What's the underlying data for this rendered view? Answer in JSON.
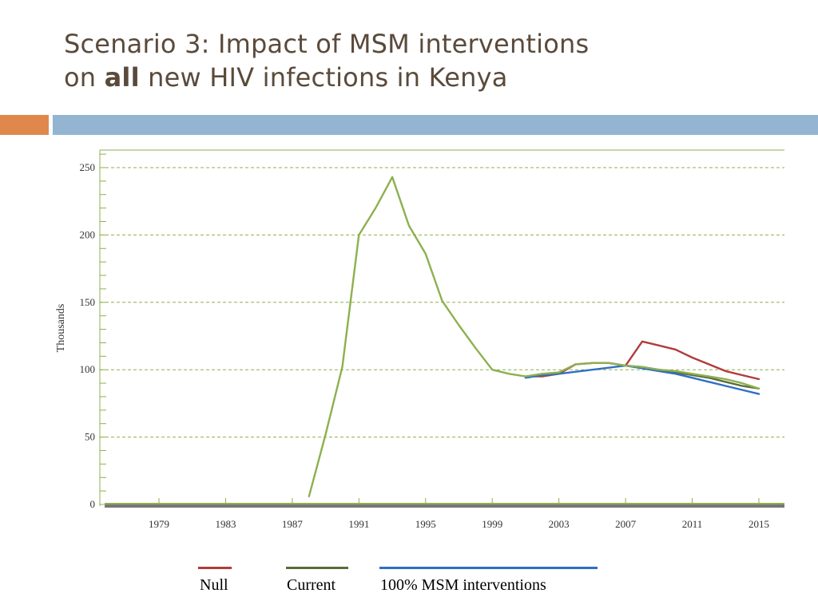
{
  "slide": {
    "title_line1": "Scenario 3: Impact of MSM interventions",
    "title_line2_pre": "on ",
    "title_line2_bold": "all",
    "title_line2_post": " new HIV infections in Kenya",
    "colors": {
      "title": "#5a4a3b",
      "accent_orange": "#e0884c",
      "accent_blue": "#93b5d1"
    }
  },
  "chart_data": {
    "type": "line",
    "title": "",
    "xlabel": "",
    "ylabel": "Thousands",
    "xlim": [
      1975,
      2016
    ],
    "ylim": [
      0,
      262
    ],
    "x_ticks": [
      1979,
      1983,
      1987,
      1991,
      1995,
      1999,
      2003,
      2007,
      2011,
      2015
    ],
    "y_ticks": [
      0,
      50,
      100,
      150,
      200,
      250
    ],
    "grid": "horizontal-dashed",
    "legend": "bottom",
    "series": [
      {
        "name": "Null",
        "color": "#b23b3b",
        "x": [
          2001,
          2002,
          2003,
          2004,
          2005,
          2006,
          2007,
          2008,
          2009,
          2010,
          2011,
          2012,
          2013,
          2014,
          2015
        ],
        "y": [
          95,
          95,
          97,
          104,
          105,
          105,
          103,
          121,
          118,
          115,
          109,
          104,
          99,
          96,
          93
        ]
      },
      {
        "name": "Current",
        "color": "#5a6b3c",
        "x": [
          2007,
          2008,
          2009,
          2010,
          2011,
          2012,
          2013,
          2014,
          2015
        ],
        "y": [
          103,
          102,
          100,
          98,
          96,
          94,
          91,
          88,
          86
        ]
      },
      {
        "name": "100% MSM interventions",
        "color": "#2f6fc4",
        "x": [
          2001,
          2002,
          2003,
          2007,
          2008,
          2009,
          2010,
          2011,
          2012,
          2013,
          2014,
          2015
        ],
        "y": [
          94,
          96,
          97,
          103,
          101,
          99,
          97,
          94,
          91,
          88,
          85,
          82
        ]
      },
      {
        "name": "",
        "color": "#8db04e",
        "x": [
          1988,
          1989,
          1990,
          1991,
          1992,
          1993,
          1994,
          1995,
          1996,
          1997,
          1998,
          1999,
          2000,
          2001,
          2002,
          2003,
          2004,
          2005,
          2006,
          2007,
          2008,
          2009,
          2010,
          2011,
          2012,
          2013,
          2014,
          2015
        ],
        "y": [
          6,
          52,
          102,
          200,
          220,
          243,
          207,
          186,
          151,
          133,
          116,
          100,
          97,
          95,
          97,
          98,
          104,
          105,
          105,
          103,
          102,
          100,
          99,
          97,
          95,
          93,
          90,
          86
        ]
      }
    ]
  }
}
